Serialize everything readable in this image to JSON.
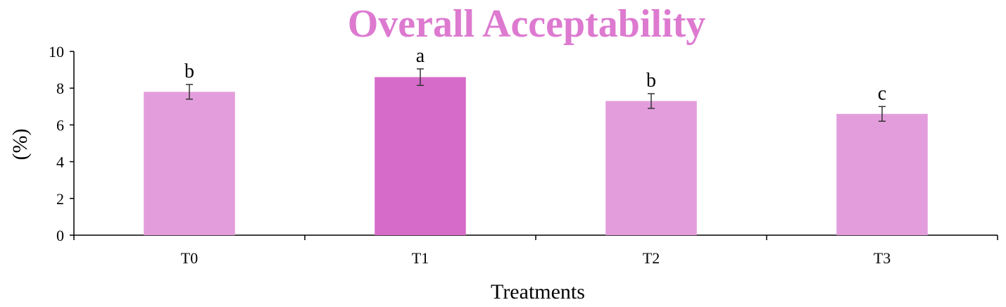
{
  "chart_data": {
    "type": "bar",
    "title": "Overall Acceptability",
    "xlabel": "Treatments",
    "ylabel": "(%)",
    "categories": [
      "T0",
      "T1",
      "T2",
      "T3"
    ],
    "values": [
      7.8,
      8.6,
      7.3,
      6.6
    ],
    "errors": [
      0.4,
      0.45,
      0.4,
      0.4
    ],
    "significance_letters": [
      "b",
      "a",
      "b",
      "c"
    ],
    "ylim": [
      0,
      10
    ],
    "yticks": [
      "0",
      "2",
      "4",
      "6",
      "8",
      "10"
    ],
    "grid": false,
    "legend": "none",
    "colors": {
      "title": "#dd7ad0",
      "bar_default": "#e39ddc",
      "bar_highlight": "#d66bc9",
      "highlight_index": 1,
      "axis": "#000000"
    }
  }
}
